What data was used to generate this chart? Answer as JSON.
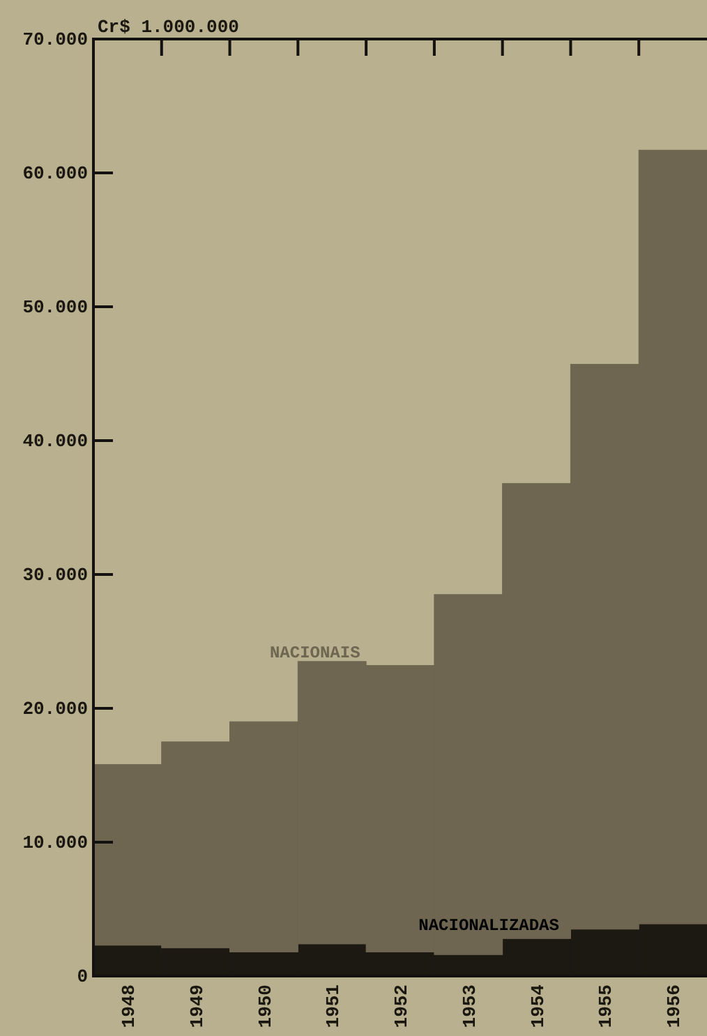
{
  "chart_data": {
    "type": "bar",
    "stacked": true,
    "ylabel": "Cr$ 1.000.000",
    "categories": [
      "1948",
      "1949",
      "1950",
      "1951",
      "1952",
      "1953",
      "1954",
      "1955",
      "1956"
    ],
    "series": [
      {
        "name": "NACIONALIZADAS",
        "color": "#1c1812",
        "values": [
          2300,
          2100,
          1800,
          2400,
          1800,
          1600,
          2800,
          3500,
          3900
        ]
      },
      {
        "name": "NACIONAIS",
        "color": "#6e6650",
        "values": [
          13500,
          15400,
          17200,
          21100,
          21400,
          26900,
          34000,
          42200,
          57800
        ]
      }
    ],
    "ylim": [
      0,
      70000
    ],
    "yticks": [
      0,
      {
        "value": 10000,
        "label": "10.000"
      },
      {
        "value": 20000,
        "label": "20.000"
      },
      {
        "value": 30000,
        "label": "30.000"
      },
      {
        "value": 40000,
        "label": "40.000"
      },
      {
        "value": 50000,
        "label": "50.000"
      },
      {
        "value": 60000,
        "label": "60.000"
      },
      {
        "value": 70000,
        "label": "70.000"
      }
    ],
    "grid": false,
    "legend": false
  }
}
